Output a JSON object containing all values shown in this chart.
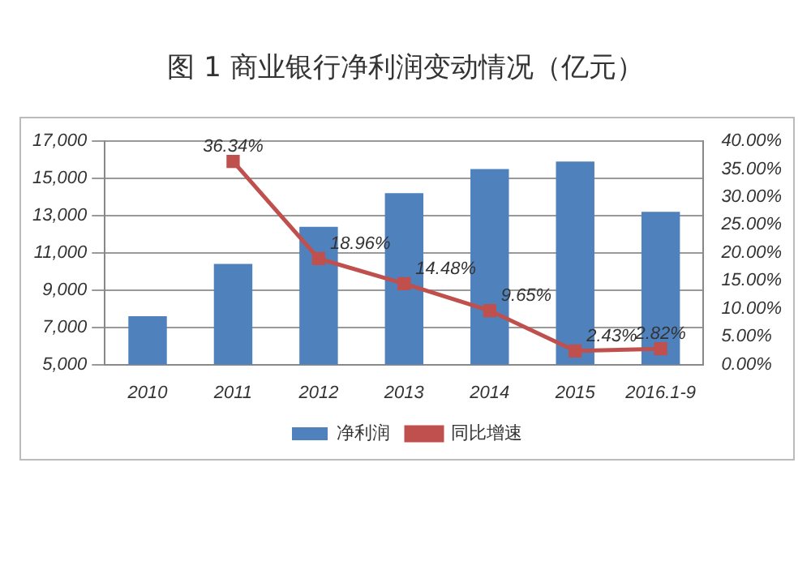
{
  "chart_data": {
    "type": "bar",
    "title": "图 1  商业银行净利润变动情况（亿元）",
    "categories": [
      "2010",
      "2011",
      "2012",
      "2013",
      "2014",
      "2015",
      "2016.1-9"
    ],
    "series": [
      {
        "name": "净利润",
        "color": "#4f81bd",
        "values": [
          7600,
          10400,
          12400,
          14200,
          15500,
          15900,
          13200
        ]
      },
      {
        "name": "同比增速",
        "type": "line",
        "axis": "y2",
        "color": "#c0504d",
        "marker": "square",
        "values": [
          null,
          36.34,
          18.96,
          14.48,
          9.65,
          2.43,
          2.82
        ],
        "value_labels": [
          null,
          "36.34%",
          "18.96%",
          "14.48%",
          "9.65%",
          "2.43%",
          "2.82%"
        ]
      }
    ],
    "ylim": [
      5000,
      17000
    ],
    "yticks": [
      {
        "value": 5000,
        "label": "5,000"
      },
      {
        "value": 7000,
        "label": "7,000"
      },
      {
        "value": 9000,
        "label": "9,000"
      },
      {
        "value": 11000,
        "label": "11,000"
      },
      {
        "value": 13000,
        "label": "13,000"
      },
      {
        "value": 15000,
        "label": "15,000"
      },
      {
        "value": 17000,
        "label": "17,000"
      }
    ],
    "y2lim": [
      0,
      40
    ],
    "y2ticks": [
      {
        "value": 0,
        "label": "0.00%"
      },
      {
        "value": 5,
        "label": "5.00%"
      },
      {
        "value": 10,
        "label": "10.00%"
      },
      {
        "value": 15,
        "label": "15.00%"
      },
      {
        "value": 20,
        "label": "20.00%"
      },
      {
        "value": 25,
        "label": "25.00%"
      },
      {
        "value": 30,
        "label": "30.00%"
      },
      {
        "value": 35,
        "label": "35.00%"
      },
      {
        "value": 40,
        "label": "40.00%"
      }
    ],
    "grid": "y",
    "legend": "bottom"
  }
}
